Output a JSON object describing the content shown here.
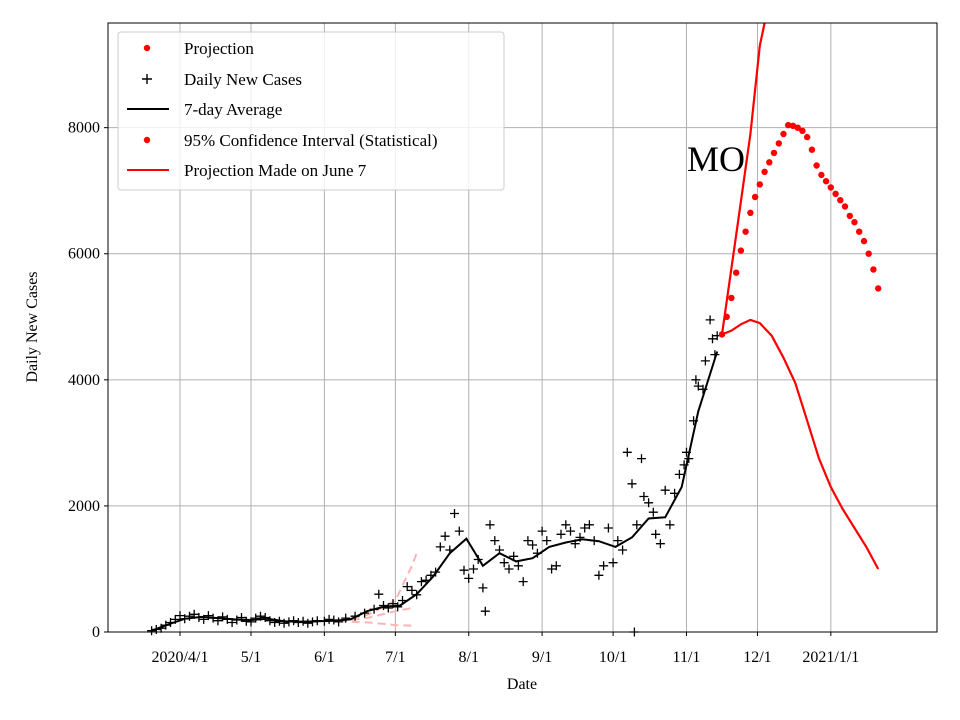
{
  "chart_data": {
    "type": "line",
    "annotation": "MO",
    "xlabel": "Date",
    "ylabel": "Daily New Cases",
    "ylim": [
      0,
      9660
    ],
    "x_tick_labels": [
      "2020/4/1",
      "5/1",
      "6/1",
      "7/1",
      "8/1",
      "9/1",
      "10/1",
      "11/1",
      "12/1",
      "2021/1/1"
    ],
    "y_tick_labels": [
      "0",
      "2000",
      "4000",
      "6000",
      "8000"
    ],
    "y_ticks": [
      0,
      2000,
      4000,
      6000,
      8000
    ],
    "grid": true,
    "legend": {
      "position": "top-left",
      "items": [
        {
          "label": "Projection",
          "marker": "dot",
          "color": "#ff0000"
        },
        {
          "label": "Daily New Cases",
          "marker": "plus",
          "color": "#000000"
        },
        {
          "label": "7-day Average",
          "marker": "line",
          "color": "#000000"
        },
        {
          "label": "95% Confidence Interval (Statistical)",
          "marker": "dot",
          "color": "#ff0000"
        },
        {
          "label": "Projection Made on June 7",
          "marker": "line",
          "color": "#ff0000"
        }
      ]
    },
    "colors": {
      "projection": "#ff0000",
      "daily": "#000000",
      "average": "#000000",
      "old_projection_band": "#ffb3b3",
      "grid": "#b0b0b0"
    },
    "series": [
      {
        "name": "Daily New Cases",
        "style": "plus",
        "points": [
          [
            "2020-03-20",
            20
          ],
          [
            "2020-03-22",
            40
          ],
          [
            "2020-03-24",
            60
          ],
          [
            "2020-03-26",
            110
          ],
          [
            "2020-03-28",
            150
          ],
          [
            "2020-03-30",
            200
          ],
          [
            "2020-04-01",
            260
          ],
          [
            "2020-04-03",
            210
          ],
          [
            "2020-04-05",
            250
          ],
          [
            "2020-04-07",
            280
          ],
          [
            "2020-04-09",
            230
          ],
          [
            "2020-04-11",
            200
          ],
          [
            "2020-04-13",
            260
          ],
          [
            "2020-04-15",
            220
          ],
          [
            "2020-04-17",
            180
          ],
          [
            "2020-04-19",
            240
          ],
          [
            "2020-04-21",
            200
          ],
          [
            "2020-04-23",
            150
          ],
          [
            "2020-04-25",
            190
          ],
          [
            "2020-04-27",
            230
          ],
          [
            "2020-04-29",
            170
          ],
          [
            "2020-05-01",
            160
          ],
          [
            "2020-05-03",
            220
          ],
          [
            "2020-05-05",
            250
          ],
          [
            "2020-05-07",
            230
          ],
          [
            "2020-05-09",
            180
          ],
          [
            "2020-05-11",
            150
          ],
          [
            "2020-05-13",
            170
          ],
          [
            "2020-05-15",
            140
          ],
          [
            "2020-05-17",
            160
          ],
          [
            "2020-05-19",
            180
          ],
          [
            "2020-05-21",
            150
          ],
          [
            "2020-05-23",
            170
          ],
          [
            "2020-05-25",
            140
          ],
          [
            "2020-05-27",
            160
          ],
          [
            "2020-05-29",
            180
          ],
          [
            "2020-06-01",
            170
          ],
          [
            "2020-06-03",
            200
          ],
          [
            "2020-06-05",
            190
          ],
          [
            "2020-06-07",
            160
          ],
          [
            "2020-06-10",
            220
          ],
          [
            "2020-06-14",
            250
          ],
          [
            "2020-06-18",
            300
          ],
          [
            "2020-06-22",
            360
          ],
          [
            "2020-06-24",
            600
          ],
          [
            "2020-06-26",
            420
          ],
          [
            "2020-06-28",
            380
          ],
          [
            "2020-06-30",
            450
          ],
          [
            "2020-07-02",
            400
          ],
          [
            "2020-07-04",
            500
          ],
          [
            "2020-07-06",
            720
          ],
          [
            "2020-07-08",
            660
          ],
          [
            "2020-07-10",
            590
          ],
          [
            "2020-07-12",
            800
          ],
          [
            "2020-07-14",
            820
          ],
          [
            "2020-07-16",
            900
          ],
          [
            "2020-07-18",
            950
          ],
          [
            "2020-07-20",
            1350
          ],
          [
            "2020-07-22",
            1520
          ],
          [
            "2020-07-24",
            1300
          ],
          [
            "2020-07-26",
            1880
          ],
          [
            "2020-07-28",
            1600
          ],
          [
            "2020-07-30",
            980
          ],
          [
            "2020-08-01",
            850
          ],
          [
            "2020-08-03",
            1000
          ],
          [
            "2020-08-05",
            1150
          ],
          [
            "2020-08-07",
            700
          ],
          [
            "2020-08-08",
            330
          ],
          [
            "2020-08-10",
            1700
          ],
          [
            "2020-08-12",
            1450
          ],
          [
            "2020-08-14",
            1300
          ],
          [
            "2020-08-16",
            1100
          ],
          [
            "2020-08-18",
            1000
          ],
          [
            "2020-08-20",
            1200
          ],
          [
            "2020-08-22",
            1050
          ],
          [
            "2020-08-24",
            800
          ],
          [
            "2020-08-26",
            1450
          ],
          [
            "2020-08-28",
            1380
          ],
          [
            "2020-08-30",
            1250
          ],
          [
            "2020-09-01",
            1600
          ],
          [
            "2020-09-03",
            1450
          ],
          [
            "2020-09-05",
            1000
          ],
          [
            "2020-09-07",
            1050
          ],
          [
            "2020-09-09",
            1550
          ],
          [
            "2020-09-11",
            1700
          ],
          [
            "2020-09-13",
            1600
          ],
          [
            "2020-09-15",
            1400
          ],
          [
            "2020-09-17",
            1500
          ],
          [
            "2020-09-19",
            1650
          ],
          [
            "2020-09-21",
            1700
          ],
          [
            "2020-09-23",
            1450
          ],
          [
            "2020-09-25",
            900
          ],
          [
            "2020-09-27",
            1050
          ],
          [
            "2020-09-29",
            1650
          ],
          [
            "2020-10-01",
            1100
          ],
          [
            "2020-10-03",
            1450
          ],
          [
            "2020-10-05",
            1300
          ],
          [
            "2020-10-07",
            2850
          ],
          [
            "2020-10-09",
            2350
          ],
          [
            "2020-10-10",
            0
          ],
          [
            "2020-10-11",
            1700
          ],
          [
            "2020-10-13",
            2750
          ],
          [
            "2020-10-14",
            2150
          ],
          [
            "2020-10-16",
            2050
          ],
          [
            "2020-10-18",
            1900
          ],
          [
            "2020-10-19",
            1550
          ],
          [
            "2020-10-21",
            1400
          ],
          [
            "2020-10-23",
            2250
          ],
          [
            "2020-10-25",
            1700
          ],
          [
            "2020-10-27",
            2200
          ],
          [
            "2020-10-29",
            2500
          ],
          [
            "2020-10-31",
            2650
          ],
          [
            "2020-11-01",
            2850
          ],
          [
            "2020-11-02",
            2750
          ],
          [
            "2020-11-04",
            3350
          ],
          [
            "2020-11-05",
            4000
          ],
          [
            "2020-11-06",
            3900
          ],
          [
            "2020-11-08",
            3850
          ],
          [
            "2020-11-09",
            4300
          ],
          [
            "2020-11-11",
            4950
          ],
          [
            "2020-11-12",
            4650
          ],
          [
            "2020-11-13",
            4400
          ],
          [
            "2020-11-14",
            4700
          ]
        ]
      },
      {
        "name": "7-day Average",
        "style": "line",
        "points": [
          [
            "2020-03-20",
            20
          ],
          [
            "2020-03-27",
            120
          ],
          [
            "2020-04-03",
            210
          ],
          [
            "2020-04-10",
            240
          ],
          [
            "2020-04-17",
            220
          ],
          [
            "2020-04-24",
            200
          ],
          [
            "2020-05-01",
            190
          ],
          [
            "2020-05-08",
            210
          ],
          [
            "2020-05-15",
            170
          ],
          [
            "2020-05-22",
            160
          ],
          [
            "2020-05-29",
            170
          ],
          [
            "2020-06-05",
            180
          ],
          [
            "2020-06-12",
            200
          ],
          [
            "2020-06-19",
            330
          ],
          [
            "2020-06-26",
            400
          ],
          [
            "2020-07-03",
            420
          ],
          [
            "2020-07-10",
            600
          ],
          [
            "2020-07-17",
            880
          ],
          [
            "2020-07-24",
            1250
          ],
          [
            "2020-07-31",
            1480
          ],
          [
            "2020-08-07",
            1050
          ],
          [
            "2020-08-14",
            1250
          ],
          [
            "2020-08-21",
            1120
          ],
          [
            "2020-08-28",
            1170
          ],
          [
            "2020-09-04",
            1350
          ],
          [
            "2020-09-11",
            1420
          ],
          [
            "2020-09-18",
            1470
          ],
          [
            "2020-09-25",
            1440
          ],
          [
            "2020-10-02",
            1350
          ],
          [
            "2020-10-09",
            1500
          ],
          [
            "2020-10-16",
            1800
          ],
          [
            "2020-10-23",
            1820
          ],
          [
            "2020-10-30",
            2300
          ],
          [
            "2020-11-06",
            3500
          ],
          [
            "2020-11-14",
            4450
          ]
        ]
      },
      {
        "name": "Projection",
        "style": "dot",
        "points": [
          [
            "2020-11-16",
            4720
          ],
          [
            "2020-11-18",
            5000
          ],
          [
            "2020-11-20",
            5300
          ],
          [
            "2020-11-22",
            5700
          ],
          [
            "2020-11-24",
            6050
          ],
          [
            "2020-11-26",
            6350
          ],
          [
            "2020-11-28",
            6650
          ],
          [
            "2020-11-30",
            6900
          ],
          [
            "2020-12-02",
            7100
          ],
          [
            "2020-12-04",
            7300
          ],
          [
            "2020-12-06",
            7450
          ],
          [
            "2020-12-08",
            7600
          ],
          [
            "2020-12-10",
            7750
          ],
          [
            "2020-12-12",
            7900
          ],
          [
            "2020-12-14",
            8040
          ],
          [
            "2020-12-16",
            8030
          ],
          [
            "2020-12-18",
            8000
          ],
          [
            "2020-12-20",
            7950
          ],
          [
            "2020-12-22",
            7850
          ],
          [
            "2020-12-24",
            7650
          ],
          [
            "2020-12-26",
            7400
          ],
          [
            "2020-12-28",
            7250
          ],
          [
            "2020-12-30",
            7150
          ],
          [
            "2021-01-01",
            7050
          ],
          [
            "2021-01-03",
            6950
          ],
          [
            "2021-01-05",
            6850
          ],
          [
            "2021-01-07",
            6750
          ],
          [
            "2021-01-09",
            6600
          ],
          [
            "2021-01-11",
            6500
          ],
          [
            "2021-01-13",
            6350
          ],
          [
            "2021-01-15",
            6200
          ],
          [
            "2021-01-17",
            6000
          ],
          [
            "2021-01-19",
            5750
          ],
          [
            "2021-01-21",
            5450
          ]
        ]
      },
      {
        "name": "95% Confidence Interval (Statistical)",
        "style": "line-upper",
        "points": [
          [
            "2020-11-16",
            4720
          ],
          [
            "2020-11-22",
            6300
          ],
          [
            "2020-11-28",
            7900
          ],
          [
            "2020-12-02",
            9300
          ],
          [
            "2020-12-04",
            9660
          ]
        ]
      },
      {
        "name": "95% Confidence Interval (Statistical)",
        "style": "line-lower",
        "points": [
          [
            "2020-11-16",
            4720
          ],
          [
            "2020-11-20",
            4780
          ],
          [
            "2020-11-24",
            4880
          ],
          [
            "2020-11-28",
            4950
          ],
          [
            "2020-12-02",
            4900
          ],
          [
            "2020-12-07",
            4700
          ],
          [
            "2020-12-12",
            4350
          ],
          [
            "2020-12-17",
            3950
          ],
          [
            "2020-12-22",
            3350
          ],
          [
            "2020-12-27",
            2750
          ],
          [
            "2021-01-01",
            2300
          ],
          [
            "2021-01-06",
            1950
          ],
          [
            "2021-01-11",
            1650
          ],
          [
            "2021-01-16",
            1350
          ],
          [
            "2021-01-21",
            1000
          ]
        ]
      },
      {
        "name": "Projection Made on June 7",
        "style": "dashed-band",
        "lines": [
          [
            [
              "2020-06-07",
              170
            ],
            [
              "2020-06-20",
              280
            ],
            [
              "2020-07-01",
              500
            ],
            [
              "2020-07-08",
              1050
            ],
            [
              "2020-07-10",
              1250
            ]
          ],
          [
            [
              "2020-06-07",
              170
            ],
            [
              "2020-06-20",
              230
            ],
            [
              "2020-07-01",
              330
            ],
            [
              "2020-07-08",
              380
            ]
          ],
          [
            [
              "2020-06-07",
              170
            ],
            [
              "2020-06-20",
              150
            ],
            [
              "2020-07-01",
              110
            ],
            [
              "2020-07-08",
              100
            ]
          ]
        ]
      }
    ]
  }
}
